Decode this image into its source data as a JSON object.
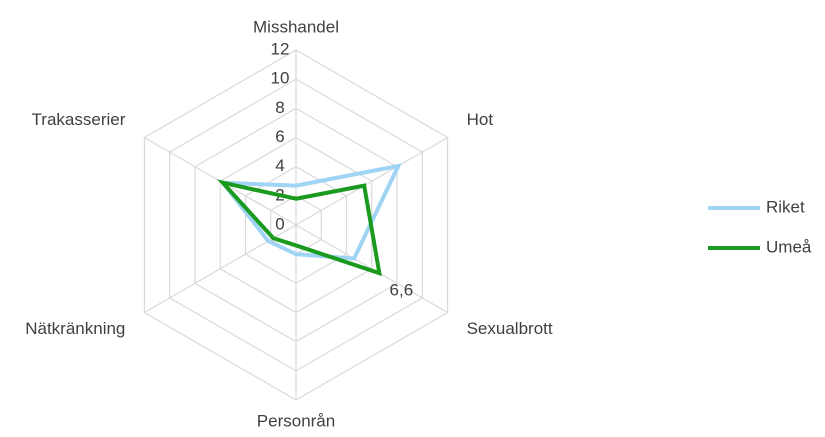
{
  "chart_data": {
    "type": "radar",
    "categories": [
      "Misshandel",
      "Hot",
      "Sexualbrott",
      "Personrån",
      "Nätkränkning",
      "Trakasserier"
    ],
    "series": [
      {
        "name": "Riket",
        "color": "#9fd4f5",
        "values": [
          2.7,
          8.1,
          4.6,
          2,
          2.2,
          5.8
        ]
      },
      {
        "name": "Umeå",
        "color": "#1a9a1e",
        "values": [
          1.8,
          5.4,
          6.6,
          1.4,
          1.8,
          5.8
        ],
        "value_labels": [
          null,
          null,
          "6,6",
          null,
          null,
          null
        ]
      }
    ],
    "ylim": [
      0,
      12
    ],
    "yticks": [
      0,
      2,
      4,
      6,
      8,
      10,
      12
    ],
    "grid": true,
    "legend": "right"
  }
}
